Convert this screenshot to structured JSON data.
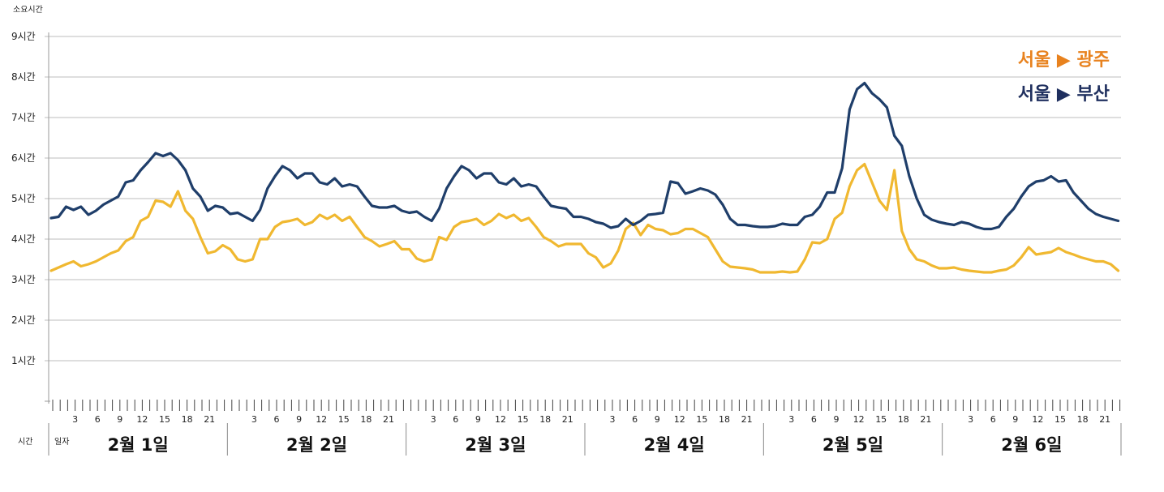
{
  "chart_data": {
    "type": "line",
    "ylabel": "소요시간",
    "ylim": [
      0,
      9
    ],
    "yticks": [
      "1시간",
      "2시간",
      "3시간",
      "4시간",
      "5시간",
      "6시간",
      "7시간",
      "8시간",
      "9시간"
    ],
    "xlabel_row": "시간",
    "xlabel_day": "일자",
    "hour_ticks": [
      "3",
      "6",
      "9",
      "12",
      "15",
      "18",
      "21"
    ],
    "days": [
      "2월 1일",
      "2월 2일",
      "2월 3일",
      "2월 4일",
      "2월 5일",
      "2월 6일"
    ],
    "grid": true,
    "legend": "top-right",
    "series": [
      {
        "name": "서울 ▶ 광주",
        "color": "#F0B830",
        "legend_color": "#E8821E",
        "points": [
          [
            0,
            3.22
          ],
          [
            1,
            3.3
          ],
          [
            2,
            3.38
          ],
          [
            3,
            3.45
          ],
          [
            4,
            3.33
          ],
          [
            5,
            3.38
          ],
          [
            6,
            3.45
          ],
          [
            7,
            3.55
          ],
          [
            8,
            3.65
          ],
          [
            9,
            3.72
          ],
          [
            10,
            3.95
          ],
          [
            11,
            4.05
          ],
          [
            12,
            4.45
          ],
          [
            13,
            4.55
          ],
          [
            14,
            4.95
          ],
          [
            15,
            4.92
          ],
          [
            16,
            4.8
          ],
          [
            17,
            5.18
          ],
          [
            18,
            4.7
          ],
          [
            19,
            4.5
          ],
          [
            20,
            4.05
          ],
          [
            21,
            3.65
          ],
          [
            22,
            3.7
          ],
          [
            23,
            3.85
          ],
          [
            24,
            3.75
          ],
          [
            25,
            3.5
          ],
          [
            26,
            3.45
          ],
          [
            27,
            3.5
          ],
          [
            28,
            4.0
          ],
          [
            29,
            4.0
          ],
          [
            30,
            4.3
          ],
          [
            31,
            4.42
          ],
          [
            32,
            4.45
          ],
          [
            33,
            4.5
          ],
          [
            34,
            4.35
          ],
          [
            35,
            4.42
          ],
          [
            36,
            4.6
          ],
          [
            37,
            4.5
          ],
          [
            38,
            4.6
          ],
          [
            39,
            4.45
          ],
          [
            40,
            4.55
          ],
          [
            41,
            4.3
          ],
          [
            42,
            4.05
          ],
          [
            43,
            3.95
          ],
          [
            44,
            3.82
          ],
          [
            45,
            3.88
          ],
          [
            46,
            3.95
          ],
          [
            47,
            3.75
          ],
          [
            48,
            3.75
          ],
          [
            49,
            3.52
          ],
          [
            50,
            3.45
          ],
          [
            51,
            3.5
          ],
          [
            52,
            4.05
          ],
          [
            53,
            3.98
          ],
          [
            54,
            4.3
          ],
          [
            55,
            4.42
          ],
          [
            56,
            4.45
          ],
          [
            57,
            4.5
          ],
          [
            58,
            4.35
          ],
          [
            59,
            4.45
          ],
          [
            60,
            4.62
          ],
          [
            61,
            4.52
          ],
          [
            62,
            4.6
          ],
          [
            63,
            4.45
          ],
          [
            64,
            4.52
          ],
          [
            65,
            4.3
          ],
          [
            66,
            4.05
          ],
          [
            67,
            3.95
          ],
          [
            68,
            3.82
          ],
          [
            69,
            3.88
          ],
          [
            70,
            3.88
          ],
          [
            71,
            3.88
          ],
          [
            72,
            3.65
          ],
          [
            73,
            3.55
          ],
          [
            74,
            3.3
          ],
          [
            75,
            3.4
          ],
          [
            76,
            3.72
          ],
          [
            77,
            4.25
          ],
          [
            78,
            4.4
          ],
          [
            79,
            4.1
          ],
          [
            80,
            4.35
          ],
          [
            81,
            4.25
          ],
          [
            82,
            4.22
          ],
          [
            83,
            4.12
          ],
          [
            84,
            4.15
          ],
          [
            85,
            4.25
          ],
          [
            86,
            4.25
          ],
          [
            87,
            4.15
          ],
          [
            88,
            4.05
          ],
          [
            89,
            3.75
          ],
          [
            90,
            3.45
          ],
          [
            91,
            3.32
          ],
          [
            92,
            3.3
          ],
          [
            93,
            3.28
          ],
          [
            94,
            3.25
          ],
          [
            95,
            3.18
          ],
          [
            96,
            3.18
          ],
          [
            97,
            3.18
          ],
          [
            98,
            3.2
          ],
          [
            99,
            3.18
          ],
          [
            100,
            3.2
          ],
          [
            101,
            3.5
          ],
          [
            102,
            3.92
          ],
          [
            103,
            3.9
          ],
          [
            104,
            4.0
          ],
          [
            105,
            4.5
          ],
          [
            106,
            4.65
          ],
          [
            107,
            5.3
          ],
          [
            108,
            5.7
          ],
          [
            109,
            5.85
          ],
          [
            110,
            5.4
          ],
          [
            111,
            4.95
          ],
          [
            112,
            4.72
          ],
          [
            113,
            5.7
          ],
          [
            114,
            4.2
          ],
          [
            115,
            3.75
          ],
          [
            116,
            3.5
          ],
          [
            117,
            3.45
          ],
          [
            118,
            3.35
          ],
          [
            119,
            3.28
          ],
          [
            120,
            3.28
          ],
          [
            121,
            3.3
          ],
          [
            122,
            3.25
          ],
          [
            123,
            3.22
          ],
          [
            124,
            3.2
          ],
          [
            125,
            3.18
          ],
          [
            126,
            3.18
          ],
          [
            127,
            3.22
          ],
          [
            128,
            3.25
          ],
          [
            129,
            3.35
          ],
          [
            130,
            3.55
          ],
          [
            131,
            3.8
          ],
          [
            132,
            3.62
          ],
          [
            133,
            3.65
          ],
          [
            134,
            3.68
          ],
          [
            135,
            3.78
          ],
          [
            136,
            3.68
          ],
          [
            137,
            3.62
          ],
          [
            138,
            3.55
          ],
          [
            139,
            3.5
          ],
          [
            140,
            3.45
          ],
          [
            141,
            3.45
          ],
          [
            142,
            3.38
          ],
          [
            143,
            3.22
          ]
        ]
      },
      {
        "name": "서울 ▶ 부산",
        "color": "#1F3E6A",
        "legend_color": "#1F2F5E",
        "points": [
          [
            0,
            4.52
          ],
          [
            1,
            4.55
          ],
          [
            2,
            4.8
          ],
          [
            3,
            4.72
          ],
          [
            4,
            4.8
          ],
          [
            5,
            4.6
          ],
          [
            6,
            4.7
          ],
          [
            7,
            4.85
          ],
          [
            8,
            4.95
          ],
          [
            9,
            5.05
          ],
          [
            10,
            5.4
          ],
          [
            11,
            5.45
          ],
          [
            12,
            5.7
          ],
          [
            13,
            5.9
          ],
          [
            14,
            6.12
          ],
          [
            15,
            6.05
          ],
          [
            16,
            6.12
          ],
          [
            17,
            5.95
          ],
          [
            18,
            5.7
          ],
          [
            19,
            5.25
          ],
          [
            20,
            5.05
          ],
          [
            21,
            4.7
          ],
          [
            22,
            4.82
          ],
          [
            23,
            4.78
          ],
          [
            24,
            4.62
          ],
          [
            25,
            4.65
          ],
          [
            26,
            4.55
          ],
          [
            27,
            4.45
          ],
          [
            28,
            4.72
          ],
          [
            29,
            5.25
          ],
          [
            30,
            5.55
          ],
          [
            31,
            5.8
          ],
          [
            32,
            5.7
          ],
          [
            33,
            5.5
          ],
          [
            34,
            5.62
          ],
          [
            35,
            5.62
          ],
          [
            36,
            5.4
          ],
          [
            37,
            5.35
          ],
          [
            38,
            5.5
          ],
          [
            39,
            5.3
          ],
          [
            40,
            5.35
          ],
          [
            41,
            5.3
          ],
          [
            42,
            5.05
          ],
          [
            43,
            4.82
          ],
          [
            44,
            4.78
          ],
          [
            45,
            4.78
          ],
          [
            46,
            4.82
          ],
          [
            47,
            4.7
          ],
          [
            48,
            4.65
          ],
          [
            49,
            4.68
          ],
          [
            50,
            4.55
          ],
          [
            51,
            4.45
          ],
          [
            52,
            4.75
          ],
          [
            53,
            5.25
          ],
          [
            54,
            5.55
          ],
          [
            55,
            5.8
          ],
          [
            56,
            5.7
          ],
          [
            57,
            5.5
          ],
          [
            58,
            5.62
          ],
          [
            59,
            5.62
          ],
          [
            60,
            5.4
          ],
          [
            61,
            5.35
          ],
          [
            62,
            5.5
          ],
          [
            63,
            5.3
          ],
          [
            64,
            5.35
          ],
          [
            65,
            5.3
          ],
          [
            66,
            5.05
          ],
          [
            67,
            4.82
          ],
          [
            68,
            4.78
          ],
          [
            69,
            4.75
          ],
          [
            70,
            4.55
          ],
          [
            71,
            4.55
          ],
          [
            72,
            4.5
          ],
          [
            73,
            4.42
          ],
          [
            74,
            4.38
          ],
          [
            75,
            4.28
          ],
          [
            76,
            4.32
          ],
          [
            77,
            4.5
          ],
          [
            78,
            4.35
          ],
          [
            79,
            4.45
          ],
          [
            80,
            4.6
          ],
          [
            81,
            4.62
          ],
          [
            82,
            4.65
          ],
          [
            83,
            5.42
          ],
          [
            84,
            5.38
          ],
          [
            85,
            5.12
          ],
          [
            86,
            5.18
          ],
          [
            87,
            5.25
          ],
          [
            88,
            5.2
          ],
          [
            89,
            5.1
          ],
          [
            90,
            4.85
          ],
          [
            91,
            4.5
          ],
          [
            92,
            4.35
          ],
          [
            93,
            4.35
          ],
          [
            94,
            4.32
          ],
          [
            95,
            4.3
          ],
          [
            96,
            4.3
          ],
          [
            97,
            4.32
          ],
          [
            98,
            4.38
          ],
          [
            99,
            4.35
          ],
          [
            100,
            4.35
          ],
          [
            101,
            4.55
          ],
          [
            102,
            4.6
          ],
          [
            103,
            4.8
          ],
          [
            104,
            5.15
          ],
          [
            105,
            5.15
          ],
          [
            106,
            5.75
          ],
          [
            107,
            7.2
          ],
          [
            108,
            7.7
          ],
          [
            109,
            7.85
          ],
          [
            110,
            7.6
          ],
          [
            111,
            7.45
          ],
          [
            112,
            7.25
          ],
          [
            113,
            6.55
          ],
          [
            114,
            6.3
          ],
          [
            115,
            5.55
          ],
          [
            116,
            5.0
          ],
          [
            117,
            4.6
          ],
          [
            118,
            4.48
          ],
          [
            119,
            4.42
          ],
          [
            120,
            4.38
          ],
          [
            121,
            4.35
          ],
          [
            122,
            4.42
          ],
          [
            123,
            4.38
          ],
          [
            124,
            4.3
          ],
          [
            125,
            4.25
          ],
          [
            126,
            4.25
          ],
          [
            127,
            4.3
          ],
          [
            128,
            4.55
          ],
          [
            129,
            4.75
          ],
          [
            130,
            5.05
          ],
          [
            131,
            5.3
          ],
          [
            132,
            5.42
          ],
          [
            133,
            5.45
          ],
          [
            134,
            5.55
          ],
          [
            135,
            5.42
          ],
          [
            136,
            5.45
          ],
          [
            137,
            5.15
          ],
          [
            138,
            4.95
          ],
          [
            139,
            4.75
          ],
          [
            140,
            4.62
          ],
          [
            141,
            4.55
          ],
          [
            142,
            4.5
          ],
          [
            143,
            4.45
          ]
        ]
      }
    ]
  }
}
